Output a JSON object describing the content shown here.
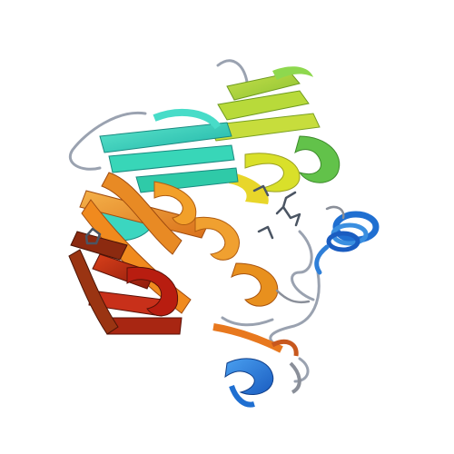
{
  "scene": {
    "background": "#ffffff",
    "palette": {
      "blue": "#1f6fd1",
      "light_blue": "#3b8fe0",
      "cyan": "#2fd0c8",
      "teal": "#38c8a0",
      "green": "#7ed957",
      "yellow_green": "#b5d82b",
      "yellow": "#e8e02a",
      "orange": "#f2a02a",
      "dark_orange": "#e6781e",
      "red_orange": "#d8501a",
      "red": "#b81d10",
      "dark_red": "#8c2a10",
      "loop_grey": "#9aa2b0",
      "ligand": "#6b7280"
    }
  }
}
